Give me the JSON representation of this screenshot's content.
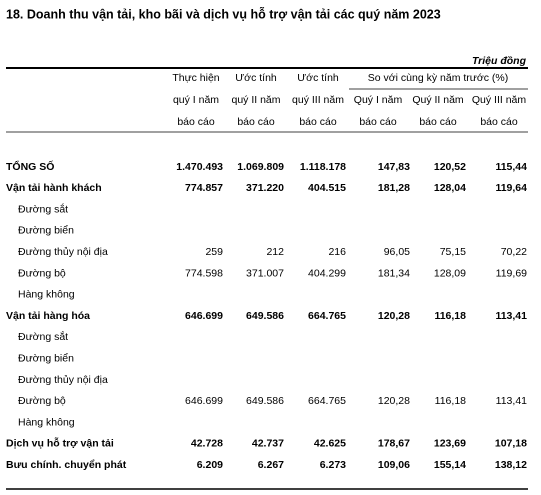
{
  "title": "18. Doanh thu vận tải, kho bãi và dịch vụ hỗ trợ vận tải các quý năm 2023",
  "unit": "Triệu đồng",
  "header": {
    "columns": [
      [
        "Thực hiện",
        "quý I năm",
        "báo cáo"
      ],
      [
        "Ước tính",
        "quý II năm",
        "báo cáo"
      ],
      [
        "Ước tính",
        "quý III năm",
        "báo cáo"
      ],
      [
        "Quý I năm",
        "báo cáo"
      ],
      [
        "Quý II năm",
        "báo cáo"
      ],
      [
        "Quý III năm",
        "báo cáo"
      ]
    ],
    "group": "So với cùng kỳ năm trước (%)"
  },
  "table": {
    "rows": [
      [
        "TỔNG SỐ",
        "1.470.493",
        "1.069.809",
        "1.118.178",
        "147,83",
        "120,52",
        "115,44"
      ],
      [
        "Vận tải hành khách",
        "774.857",
        "371.220",
        "404.515",
        "181,28",
        "128,04",
        "119,64"
      ],
      [
        "Đường sắt",
        null,
        null,
        null,
        null,
        null,
        null
      ],
      [
        "Đường biển",
        null,
        null,
        null,
        null,
        null,
        null
      ],
      [
        "Đường thủy nội địa",
        "259",
        "212",
        "216",
        "96,05",
        "75,15",
        "70,22"
      ],
      [
        "Đường bộ",
        "774.598",
        "371.007",
        "404.299",
        "181,34",
        "128,09",
        "119,69"
      ],
      [
        "Hàng không",
        null,
        null,
        null,
        null,
        null,
        null
      ],
      [
        "Vận tải hàng hóa",
        "646.699",
        "649.586",
        "664.765",
        "120,28",
        "116,18",
        "113,41"
      ],
      [
        "Đường sắt",
        null,
        null,
        null,
        null,
        null,
        null
      ],
      [
        "Đường biển",
        null,
        null,
        null,
        null,
        null,
        null
      ],
      [
        "Đường thủy nội địa",
        null,
        null,
        null,
        null,
        null,
        null
      ],
      [
        "Đường bộ",
        "646.699",
        "649.586",
        "664.765",
        "120,28",
        "116,18",
        "113,41"
      ],
      [
        "Hàng không",
        null,
        null,
        null,
        null,
        null,
        null
      ],
      [
        "Dịch vụ hỗ trợ vận tải",
        "42.728",
        "42.737",
        "42.625",
        "178,67",
        "123,69",
        "107,18"
      ],
      [
        "Bưu chính. chuyển phát",
        "6.209",
        "6.267",
        "6.273",
        "109,06",
        "155,14",
        "138,12"
      ]
    ]
  }
}
